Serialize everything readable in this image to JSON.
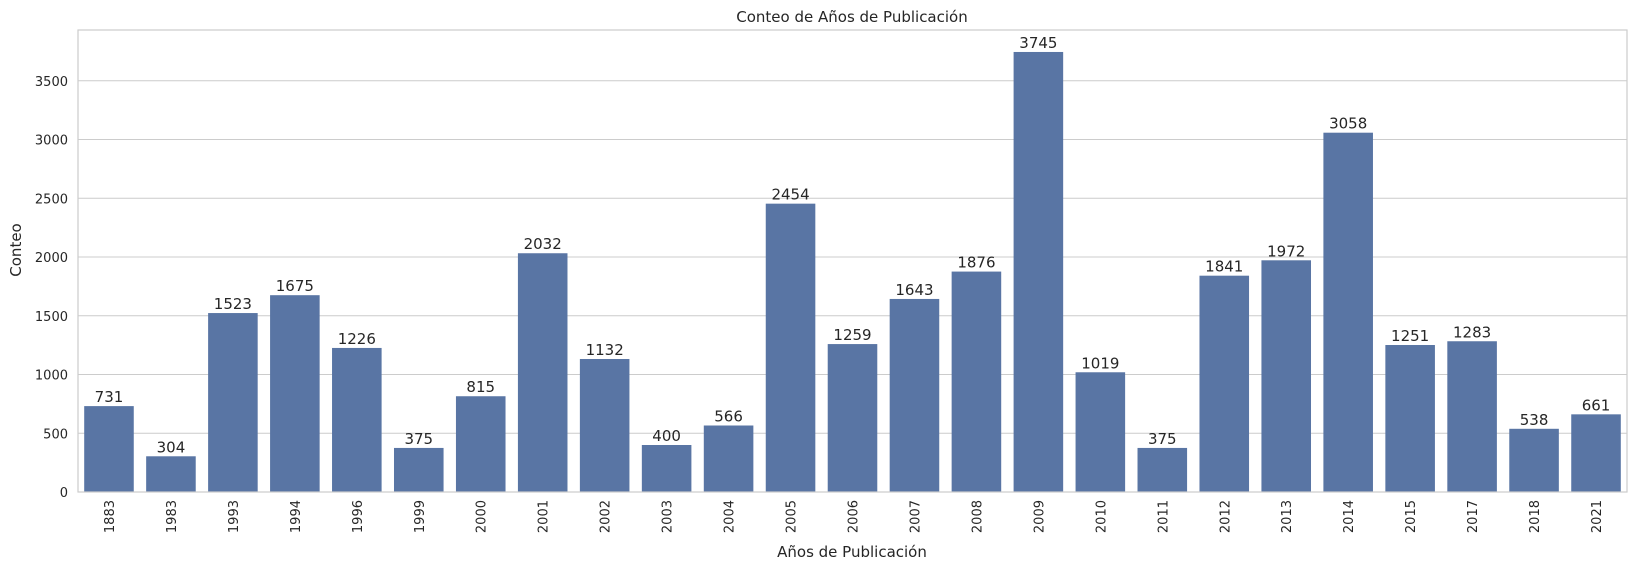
{
  "chart_data": {
    "type": "bar",
    "title": "Conteo de Años de Publicación",
    "xlabel": "Años de Publicación",
    "ylabel": "Conteo",
    "categories": [
      "1883",
      "1983",
      "1993",
      "1994",
      "1996",
      "1999",
      "2000",
      "2001",
      "2002",
      "2003",
      "2004",
      "2005",
      "2006",
      "2007",
      "2008",
      "2009",
      "2010",
      "2011",
      "2012",
      "2013",
      "2014",
      "2015",
      "2017",
      "2018",
      "2021"
    ],
    "values": [
      731,
      304,
      1523,
      1675,
      1226,
      375,
      815,
      2032,
      1132,
      400,
      566,
      2454,
      1259,
      1643,
      1876,
      3745,
      1019,
      375,
      1841,
      1972,
      3058,
      1251,
      1283,
      538,
      661
    ],
    "ylim": [
      0,
      3932
    ],
    "yticks": [
      0,
      500,
      1000,
      1500,
      2000,
      2500,
      3000,
      3500
    ],
    "grid": true,
    "bar_color": "#5975a4",
    "grid_color": "#cccccc",
    "data_labels": true
  }
}
